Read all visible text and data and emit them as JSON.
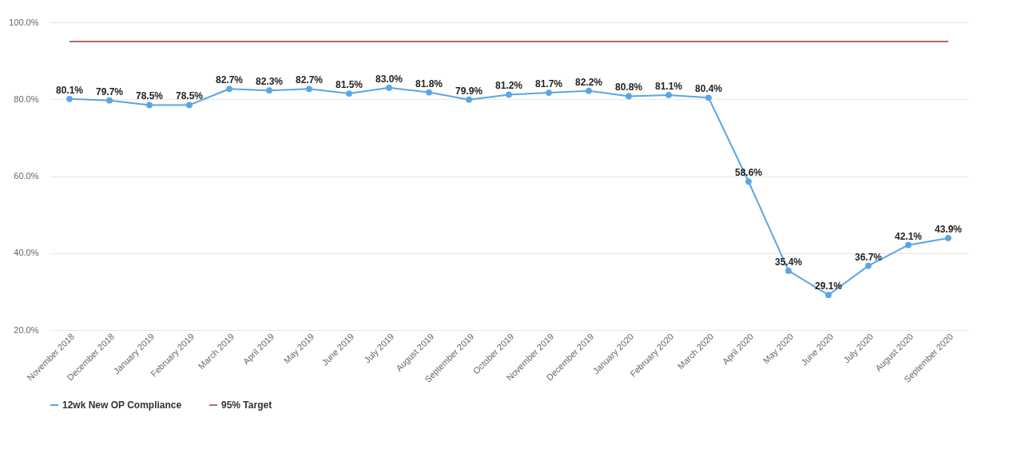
{
  "chart_data": {
    "type": "line",
    "categories": [
      "November 2018",
      "December 2018",
      "January 2019",
      "February 2019",
      "March 2019",
      "April 2019",
      "May 2019",
      "June 2019",
      "July 2019",
      "August 2019",
      "September 2019",
      "October 2019",
      "November 2019",
      "December 2019",
      "January 2020",
      "February 2020",
      "March 2020",
      "April 2020",
      "May 2020",
      "June 2020",
      "July 2020",
      "August 2020",
      "September 2020"
    ],
    "series": [
      {
        "name": "12wk New OP Compliance",
        "color": "#5aa5e6",
        "marker": "circle",
        "values": [
          80.1,
          79.7,
          78.5,
          78.5,
          82.7,
          82.3,
          82.7,
          81.5,
          83.0,
          81.8,
          79.9,
          81.2,
          81.7,
          82.2,
          80.8,
          81.1,
          80.4,
          58.6,
          35.4,
          29.1,
          36.7,
          42.1,
          43.9
        ],
        "value_labels": [
          "80.1%",
          "79.7%",
          "78.5%",
          "78.5%",
          "82.7%",
          "82.3%",
          "82.7%",
          "81.5%",
          "83.0%",
          "81.8%",
          "79.9%",
          "81.2%",
          "81.7%",
          "82.2%",
          "80.8%",
          "81.1%",
          "80.4%",
          "58.6%",
          "35.4%",
          "29.1%",
          "36.7%",
          "42.1%",
          "43.9%"
        ]
      },
      {
        "name": "95% Target",
        "color": "#b86b6b",
        "marker": "none",
        "values": [
          95,
          95,
          95,
          95,
          95,
          95,
          95,
          95,
          95,
          95,
          95,
          95,
          95,
          95,
          95,
          95,
          95,
          95,
          95,
          95,
          95,
          95,
          95
        ]
      }
    ],
    "ylim": [
      20,
      100
    ],
    "yticks": [
      {
        "value": 20,
        "label": "20.0%"
      },
      {
        "value": 40,
        "label": "40.0%"
      },
      {
        "value": 60,
        "label": "60.0%"
      },
      {
        "value": 80,
        "label": "80.0%"
      },
      {
        "value": 100,
        "label": "100.0%"
      }
    ],
    "grid": "y",
    "legend": "bottom"
  }
}
